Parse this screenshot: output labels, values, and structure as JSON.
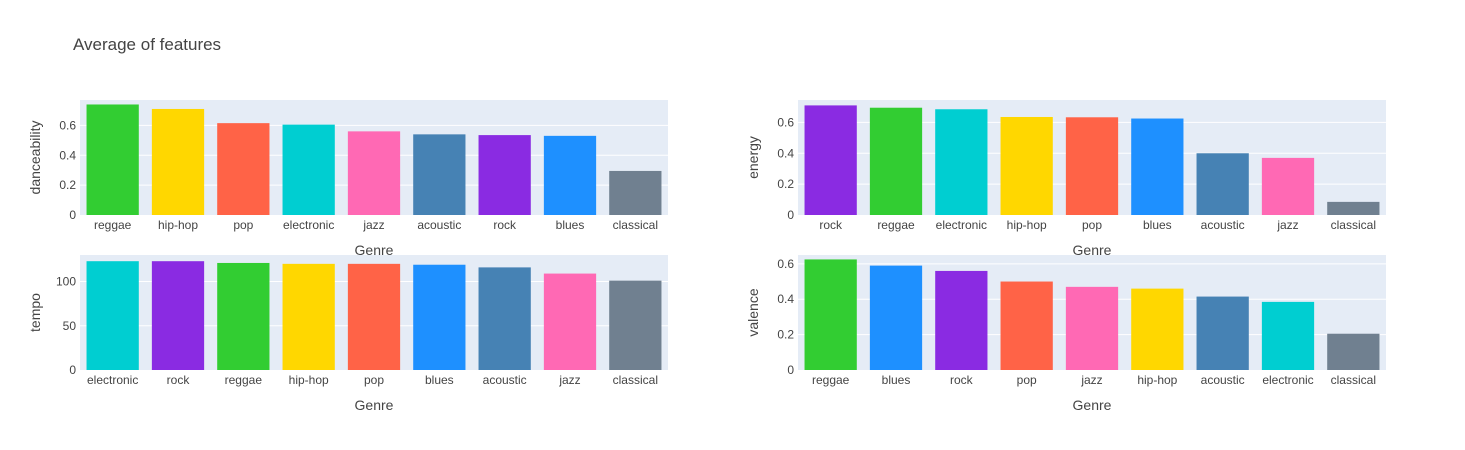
{
  "figure": {
    "title": "Average of features"
  },
  "colors": {
    "plot_bg": "#E5ECF6",
    "grid": "#ffffff",
    "genres": {
      "reggae": "#32CD32",
      "hip-hop": "#FFD700",
      "pop": "#FF6347",
      "electronic": "#00CED1",
      "jazz": "#FF69B4",
      "acoustic": "#4682B4",
      "rock": "#8A2BE2",
      "blues": "#1E90FF",
      "classical": "#708090"
    }
  },
  "chart_data": [
    {
      "type": "bar",
      "xlabel": "Genre",
      "ylabel": "danceability",
      "ylim": [
        0,
        0.77
      ],
      "yticks": [
        0,
        0.2,
        0.4,
        0.6
      ],
      "ytick_labels": [
        "0",
        "0.2",
        "0.4",
        "0.6"
      ],
      "grid": true,
      "categories": [
        "reggae",
        "hip-hop",
        "pop",
        "electronic",
        "jazz",
        "acoustic",
        "rock",
        "blues",
        "classical"
      ],
      "values": [
        0.74,
        0.71,
        0.615,
        0.605,
        0.56,
        0.54,
        0.535,
        0.53,
        0.295
      ]
    },
    {
      "type": "bar",
      "xlabel": "Genre",
      "ylabel": "energy",
      "ylim": [
        0,
        0.745
      ],
      "yticks": [
        0,
        0.2,
        0.4,
        0.6
      ],
      "ytick_labels": [
        "0",
        "0.2",
        "0.4",
        "0.6"
      ],
      "grid": true,
      "categories": [
        "rock",
        "reggae",
        "electronic",
        "hip-hop",
        "pop",
        "blues",
        "acoustic",
        "jazz",
        "classical"
      ],
      "values": [
        0.71,
        0.695,
        0.685,
        0.635,
        0.633,
        0.625,
        0.4,
        0.37,
        0.085
      ]
    },
    {
      "type": "bar",
      "xlabel": "Genre",
      "ylabel": "tempo",
      "ylim": [
        0,
        130
      ],
      "yticks": [
        0,
        50,
        100
      ],
      "ytick_labels": [
        "0",
        "50",
        "100"
      ],
      "grid": true,
      "categories": [
        "electronic",
        "rock",
        "reggae",
        "hip-hop",
        "pop",
        "blues",
        "acoustic",
        "jazz",
        "classical"
      ],
      "values": [
        123,
        123,
        121,
        120,
        120,
        119,
        116,
        109,
        101
      ]
    },
    {
      "type": "bar",
      "xlabel": "Genre",
      "ylabel": "valence",
      "ylim": [
        0,
        0.65
      ],
      "yticks": [
        0,
        0.2,
        0.4,
        0.6
      ],
      "ytick_labels": [
        "0",
        "0.2",
        "0.4",
        "0.6"
      ],
      "grid": true,
      "categories": [
        "reggae",
        "blues",
        "rock",
        "pop",
        "jazz",
        "hip-hop",
        "acoustic",
        "electronic",
        "classical"
      ],
      "values": [
        0.625,
        0.59,
        0.56,
        0.5,
        0.47,
        0.46,
        0.415,
        0.385,
        0.205
      ]
    }
  ]
}
